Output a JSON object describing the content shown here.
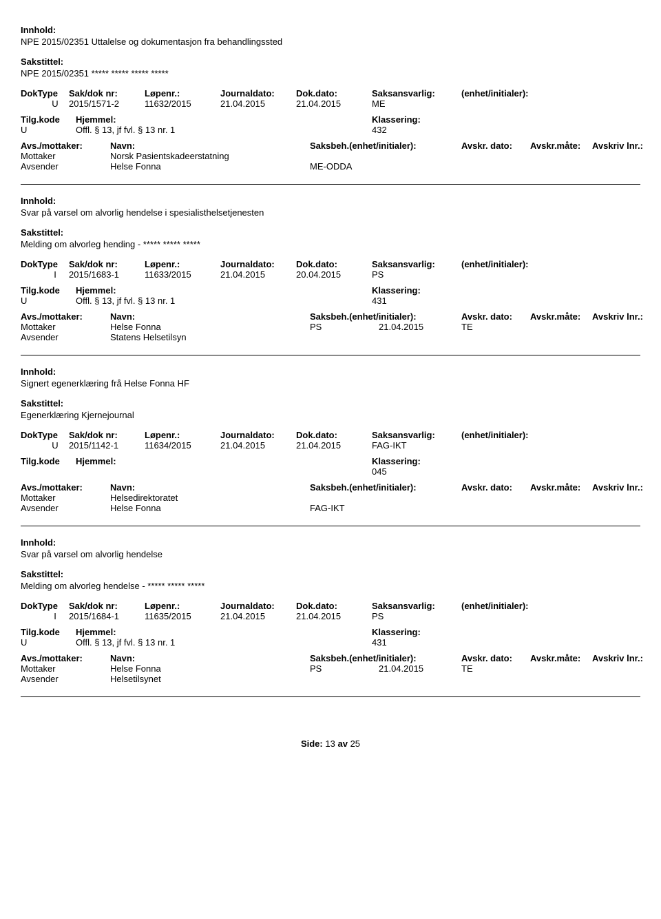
{
  "labels": {
    "innhold": "Innhold:",
    "sakstittel": "Sakstittel:",
    "dokType": "DokType",
    "sakDokNr": "Sak/dok nr:",
    "lopenr": "Løpenr.:",
    "journaldato": "Journaldato:",
    "dokdato": "Dok.dato:",
    "saksansvarlig": "Saksansvarlig:",
    "enhet": "(enhet/initialer):",
    "tilgkode": "Tilg.kode",
    "hjemmel": "Hjemmel:",
    "klassering": "Klassering:",
    "avsMottaker": "Avs./mottaker:",
    "navn": "Navn:",
    "saksbeh": "Saksbeh.(enhet/initialer):",
    "avskrDato": "Avskr. dato:",
    "avskrMate": "Avskr.måte:",
    "avskrivLnr": "Avskriv lnr.:",
    "mottaker": "Mottaker",
    "avsender": "Avsender"
  },
  "entries": [
    {
      "innhold": "NPE 2015/02351 Uttalelse og dokumentasjon fra behandlingssted",
      "sakstittel": "NPE 2015/02351 ***** ***** ***** *****",
      "dokType": "U",
      "sakDokNr": "2015/1571-2",
      "lopenr": "11632/2015",
      "journaldato": "21.04.2015",
      "dokdato": "21.04.2015",
      "saksansvarlig": "ME",
      "tilgkode": "U",
      "hjemmel": "Offl. § 13, jf fvl. § 13 nr. 1",
      "klassering": "432",
      "saksbehVal": "",
      "avskrDatoVal": "",
      "avskrMateVal": "",
      "mottaker": "Norsk Pasientskadeerstatning",
      "avsender": "Helse Fonna",
      "avsenderExtra": "ME-ODDA"
    },
    {
      "innhold": "Svar på varsel om alvorlig hendelse i spesialisthelsetjenesten",
      "sakstittel": "Melding om alvorleg hending - ***** ***** *****",
      "dokType": "I",
      "sakDokNr": "2015/1683-1",
      "lopenr": "11633/2015",
      "journaldato": "21.04.2015",
      "dokdato": "20.04.2015",
      "saksansvarlig": "PS",
      "tilgkode": "U",
      "hjemmel": "Offl. § 13, jf fvl. § 13 nr. 1",
      "klassering": "431",
      "saksbehVal": "PS",
      "avskrDatoVal": "21.04.2015",
      "avskrMateVal": "TE",
      "mottaker": "Helse Fonna",
      "avsender": "Statens Helsetilsyn",
      "avsenderExtra": ""
    },
    {
      "innhold": "Signert egenerklæring frå Helse Fonna HF",
      "sakstittel": "Egenerklæring Kjernejournal",
      "dokType": "U",
      "sakDokNr": "2015/1142-1",
      "lopenr": "11634/2015",
      "journaldato": "21.04.2015",
      "dokdato": "21.04.2015",
      "saksansvarlig": "FAG-IKT",
      "tilgkode": "",
      "hjemmel": "",
      "klassering": "045",
      "saksbehVal": "",
      "avskrDatoVal": "",
      "avskrMateVal": "",
      "mottaker": "Helsedirektoratet",
      "avsender": "Helse Fonna",
      "avsenderExtra": "FAG-IKT"
    },
    {
      "innhold": "Svar på varsel om alvorlig hendelse",
      "sakstittel": "Melding om alvorleg hendelse - ***** ***** *****",
      "dokType": "I",
      "sakDokNr": "2015/1684-1",
      "lopenr": "11635/2015",
      "journaldato": "21.04.2015",
      "dokdato": "21.04.2015",
      "saksansvarlig": "PS",
      "tilgkode": "U",
      "hjemmel": "Offl. § 13, jf fvl. § 13 nr. 1",
      "klassering": "431",
      "saksbehVal": "PS",
      "avskrDatoVal": "21.04.2015",
      "avskrMateVal": "TE",
      "mottaker": "Helse Fonna",
      "avsender": "Helsetilsynet",
      "avsenderExtra": ""
    }
  ],
  "footer": {
    "label": "Side:",
    "page": "13",
    "sep": "av",
    "total": "25"
  }
}
